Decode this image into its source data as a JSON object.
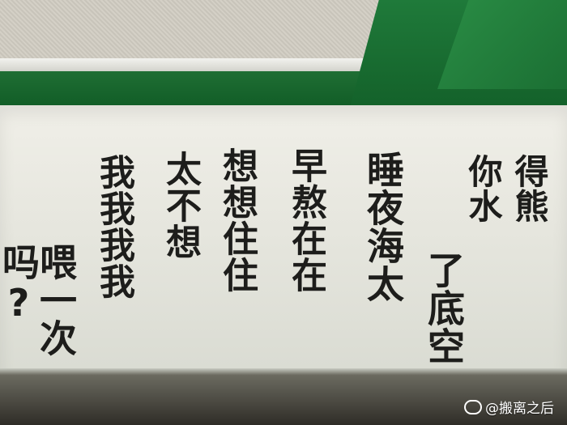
{
  "photo": {
    "texts": {
      "left_col1": "我我我我",
      "left_col2": "太不想",
      "left_col3": "想想住住",
      "left_col4": "早熬在在",
      "left_col5": "睡夜海太",
      "left_col6": "了底空",
      "left_side": "喂一次吗?",
      "right_col1": "你水",
      "right_col2": "得熊"
    },
    "watermark": "@搬离之后",
    "watermark_icon": "weibo-icon"
  }
}
